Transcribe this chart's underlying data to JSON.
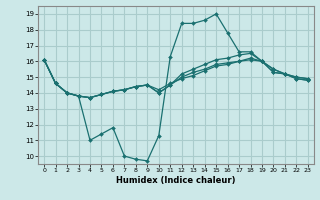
{
  "title": "",
  "xlabel": "Humidex (Indice chaleur)",
  "ylabel": "",
  "bg_color": "#cce8e8",
  "grid_color": "#aacccc",
  "line_color": "#1a7070",
  "xlim": [
    -0.5,
    23.5
  ],
  "ylim": [
    9.5,
    19.5
  ],
  "yticks": [
    10,
    11,
    12,
    13,
    14,
    15,
    16,
    17,
    18,
    19
  ],
  "xticks": [
    0,
    1,
    2,
    3,
    4,
    5,
    6,
    7,
    8,
    9,
    10,
    11,
    12,
    13,
    14,
    15,
    16,
    17,
    18,
    19,
    20,
    21,
    22,
    23
  ],
  "lines": [
    {
      "x": [
        0,
        1,
        2,
        3,
        4,
        5,
        6,
        7,
        8,
        9,
        10,
        11,
        12,
        13,
        14,
        15,
        16,
        17,
        18,
        19,
        20,
        21,
        22,
        23
      ],
      "y": [
        16.1,
        14.6,
        14.0,
        13.8,
        11.0,
        11.4,
        11.8,
        10.0,
        9.8,
        9.7,
        11.3,
        16.3,
        18.4,
        18.4,
        18.6,
        19.0,
        17.8,
        16.6,
        16.6,
        16.0,
        15.3,
        15.2,
        14.9,
        14.8
      ]
    },
    {
      "x": [
        0,
        1,
        2,
        3,
        4,
        5,
        6,
        7,
        8,
        9,
        10,
        11,
        12,
        13,
        14,
        15,
        16,
        17,
        18,
        19,
        20,
        21,
        22,
        23
      ],
      "y": [
        16.1,
        14.6,
        14.0,
        13.8,
        13.7,
        13.9,
        14.1,
        14.2,
        14.4,
        14.5,
        14.0,
        14.5,
        15.2,
        15.5,
        15.8,
        16.1,
        16.2,
        16.4,
        16.5,
        16.0,
        15.3,
        15.2,
        14.9,
        14.8
      ]
    },
    {
      "x": [
        0,
        1,
        2,
        3,
        4,
        5,
        6,
        7,
        8,
        9,
        10,
        11,
        12,
        13,
        14,
        15,
        16,
        17,
        18,
        19,
        20,
        21,
        22,
        23
      ],
      "y": [
        16.1,
        14.6,
        14.0,
        13.8,
        13.7,
        13.9,
        14.1,
        14.2,
        14.4,
        14.5,
        14.0,
        14.5,
        15.0,
        15.3,
        15.5,
        15.8,
        15.9,
        16.0,
        16.2,
        16.0,
        15.5,
        15.2,
        15.0,
        14.9
      ]
    },
    {
      "x": [
        0,
        1,
        2,
        3,
        4,
        5,
        6,
        7,
        8,
        9,
        10,
        11,
        12,
        13,
        14,
        15,
        16,
        17,
        18,
        19,
        20,
        21,
        22,
        23
      ],
      "y": [
        16.1,
        14.6,
        14.0,
        13.8,
        13.7,
        13.9,
        14.1,
        14.2,
        14.4,
        14.5,
        14.2,
        14.6,
        14.9,
        15.1,
        15.4,
        15.7,
        15.8,
        16.0,
        16.1,
        16.0,
        15.5,
        15.2,
        15.0,
        14.9
      ]
    }
  ]
}
